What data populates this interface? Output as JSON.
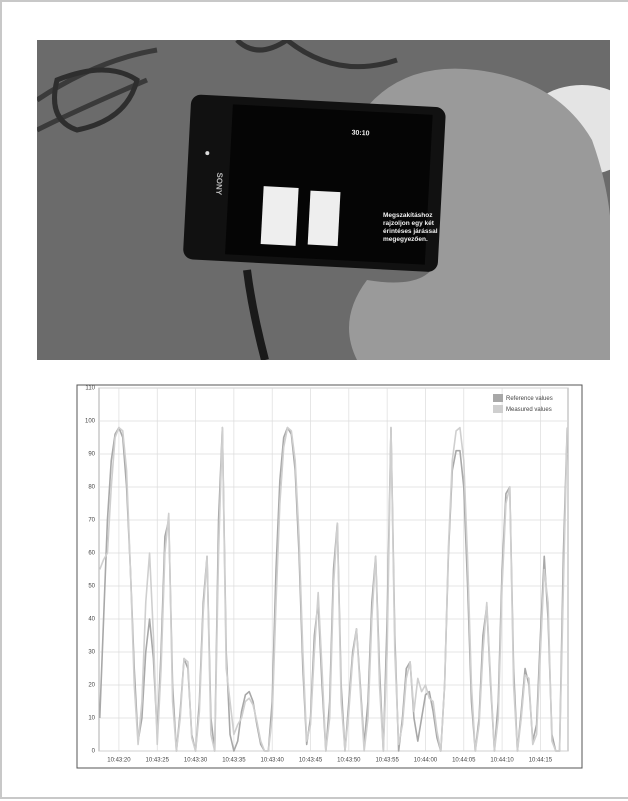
{
  "photo": {
    "phone_brand": "SONY",
    "clock": "30:10",
    "message": "Megszakításhoz rajzoljon egy két érintéses járással megegyezően."
  },
  "chart_data": {
    "type": "line",
    "x": [
      38597.5,
      38598,
      38598.5,
      38599,
      38599.5,
      38600,
      38600.5,
      38601,
      38601.5,
      38602,
      38602.5,
      38603,
      38603.5,
      38604,
      38604.5,
      38605,
      38605.5,
      38606,
      38606.5,
      38607,
      38607.5,
      38608,
      38608.5,
      38609,
      38609.5,
      38610,
      38610.5,
      38611,
      38611.5,
      38612,
      38612.5,
      38613,
      38613.5,
      38614,
      38614.5,
      38615,
      38615.5,
      38616,
      38616.5,
      38617,
      38617.5,
      38618,
      38618.5,
      38619,
      38619.5,
      38620,
      38620.5,
      38621,
      38621.5,
      38622,
      38622.5,
      38623,
      38623.5,
      38624,
      38624.5,
      38625,
      38625.5,
      38626,
      38626.5,
      38627,
      38627.5,
      38628,
      38628.5,
      38629,
      38629.5,
      38630,
      38630.5,
      38631,
      38631.5,
      38632,
      38632.5,
      38633,
      38633.5,
      38634,
      38634.5,
      38635,
      38635.5,
      38636,
      38636.5,
      38637,
      38637.5,
      38638,
      38638.5,
      38639,
      38639.5,
      38640,
      38640.5,
      38641,
      38641.5,
      38642,
      38642.5,
      38643,
      38643.5,
      38644,
      38644.5,
      38645,
      38645.5,
      38646,
      38646.5,
      38647,
      38647.5,
      38648,
      38648.5,
      38649,
      38649.5,
      38650,
      38650.5,
      38651,
      38651.5,
      38652,
      38652.5,
      38653,
      38653.5,
      38654,
      38654.5,
      38655,
      38655.5,
      38656,
      38656.5,
      38657,
      38657.5,
      38658,
      38658.5
    ],
    "series": [
      {
        "name": "Reference values",
        "color": "#a8a8a8",
        "values": [
          10,
          40,
          70,
          88,
          96,
          98,
          95,
          80,
          55,
          25,
          3,
          10,
          30,
          40,
          28,
          5,
          30,
          65,
          70,
          20,
          0,
          12,
          28,
          25,
          5,
          0,
          15,
          45,
          59,
          10,
          0,
          70,
          98,
          30,
          5,
          0,
          3,
          12,
          17,
          18,
          15,
          8,
          2,
          0,
          0,
          15,
          55,
          82,
          95,
          98,
          96,
          85,
          60,
          25,
          2,
          10,
          35,
          45,
          20,
          0,
          15,
          55,
          69,
          20,
          0,
          15,
          30,
          37,
          20,
          2,
          15,
          45,
          59,
          25,
          0,
          40,
          98,
          35,
          0,
          10,
          25,
          27,
          10,
          3,
          10,
          17,
          18,
          12,
          4,
          0,
          20,
          60,
          85,
          91,
          91,
          80,
          50,
          15,
          0,
          10,
          35,
          44,
          20,
          0,
          15,
          55,
          78,
          80,
          25,
          0,
          12,
          25,
          20,
          3,
          8,
          35,
          59,
          40,
          5,
          0,
          0,
          60,
          98
        ]
      },
      {
        "name": "Measured values",
        "color": "#cfcfcf",
        "values": [
          55,
          58,
          60,
          80,
          95,
          98,
          97,
          85,
          55,
          20,
          2,
          15,
          45,
          60,
          35,
          2,
          25,
          60,
          72,
          15,
          0,
          10,
          28,
          27,
          4,
          0,
          12,
          42,
          59,
          5,
          0,
          60,
          98,
          25,
          15,
          5,
          8,
          10,
          15,
          16,
          14,
          9,
          3,
          0,
          0,
          10,
          45,
          75,
          92,
          98,
          97,
          88,
          65,
          30,
          3,
          8,
          30,
          48,
          25,
          0,
          10,
          50,
          69,
          15,
          0,
          12,
          28,
          37,
          18,
          0,
          10,
          40,
          59,
          20,
          0,
          30,
          98,
          30,
          2,
          8,
          22,
          27,
          12,
          22,
          18,
          20,
          16,
          15,
          6,
          0,
          20,
          62,
          88,
          97,
          98,
          88,
          58,
          20,
          0,
          8,
          30,
          45,
          22,
          0,
          10,
          50,
          75,
          80,
          20,
          0,
          10,
          23,
          22,
          2,
          5,
          30,
          55,
          45,
          3,
          0,
          0,
          50,
          98
        ]
      }
    ],
    "xlim": [
      38597.4,
      38658.6
    ],
    "xticks": [
      {
        "value": 38600,
        "label": "10:43:20"
      },
      {
        "value": 38605,
        "label": "10:43:25"
      },
      {
        "value": 38610,
        "label": "10:43:30"
      },
      {
        "value": 38615,
        "label": "10:43:35"
      },
      {
        "value": 38620,
        "label": "10:43:40"
      },
      {
        "value": 38625,
        "label": "10:43:45"
      },
      {
        "value": 38630,
        "label": "10:43:50"
      },
      {
        "value": 38635,
        "label": "10:43:55"
      },
      {
        "value": 38640,
        "label": "10:44:00"
      },
      {
        "value": 38645,
        "label": "10:44:05"
      },
      {
        "value": 38650,
        "label": "10:44:10"
      },
      {
        "value": 38655,
        "label": "10:44:15"
      }
    ],
    "ylim": [
      0,
      110
    ],
    "yticks": [
      0,
      10,
      20,
      30,
      40,
      50,
      60,
      70,
      80,
      90,
      100,
      110
    ],
    "grid": true,
    "legend": "upper right"
  }
}
